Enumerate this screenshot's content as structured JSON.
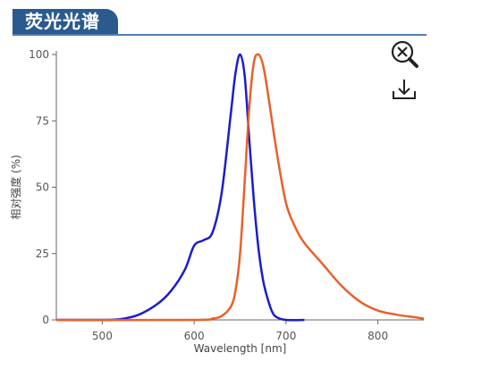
{
  "header": {
    "title": "荧光光谱"
  },
  "colors": {
    "header_bg": "#2a5a8e",
    "excitation": "#1c1ccf",
    "emission": "#e8612a"
  },
  "toolbar": {
    "zoom_icon": "zoom-reset-icon",
    "download_icon": "download-icon"
  },
  "chart_data": {
    "type": "line",
    "title": "",
    "xlabel": "Wavelength [nm]",
    "ylabel": "相对强度 (%)",
    "xlim": [
      450,
      850
    ],
    "ylim": [
      0,
      100
    ],
    "x_ticks": [
      "500",
      "600",
      "700",
      "800"
    ],
    "y_ticks": [
      "0",
      "25",
      "50",
      "75",
      "100"
    ],
    "grid": false,
    "legend": "none",
    "series": [
      {
        "color": "#1c1ccf",
        "x": [
          450,
          500,
          520,
          540,
          560,
          575,
          590,
          600,
          610,
          620,
          630,
          640,
          645,
          650,
          655,
          660,
          665,
          670,
          675,
          680,
          685,
          690,
          700,
          720
        ],
        "y": [
          0,
          0,
          0.3,
          2,
          6,
          11,
          19,
          28,
          30,
          33,
          48,
          78,
          93,
          100,
          92,
          68,
          45,
          27,
          15,
          8,
          3,
          1,
          0,
          0
        ]
      },
      {
        "color": "#e8612a",
        "x": [
          450,
          600,
          620,
          630,
          640,
          645,
          650,
          655,
          660,
          665,
          670,
          675,
          680,
          690,
          700,
          710,
          720,
          740,
          760,
          780,
          800,
          820,
          840,
          850
        ],
        "y": [
          0,
          0,
          0.5,
          1.5,
          5,
          11,
          25,
          52,
          80,
          97,
          100,
          96,
          86,
          63,
          44,
          35,
          29,
          21,
          13,
          7,
          3.5,
          2,
          1,
          0.5
        ]
      }
    ]
  }
}
